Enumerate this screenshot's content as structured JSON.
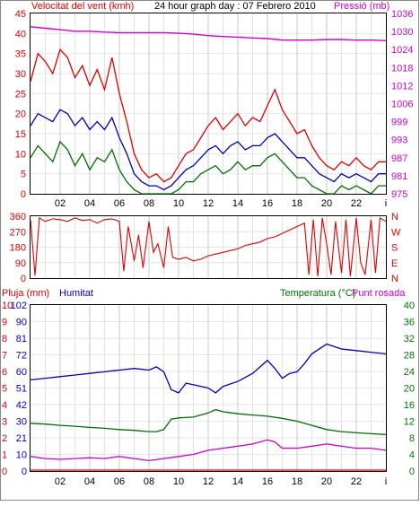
{
  "chart_data": [
    {
      "type": "line",
      "title": "24 hour graph day : 07 Febrero 2010",
      "left_axis_label": "Velocitat del vent (kmh)",
      "right_axis_label": "Pressió (mb)",
      "left_ticks": [
        "0",
        "5",
        "10",
        "15",
        "20",
        "25",
        "30",
        "35",
        "40",
        "45"
      ],
      "right_ticks": [
        "975",
        "981",
        "987",
        "993",
        "999",
        "1006",
        "1012",
        "1018",
        "1024",
        "1030",
        "1036"
      ],
      "x_ticks": [
        "02",
        "04",
        "06",
        "08",
        "10",
        "12",
        "14",
        "16",
        "18",
        "20",
        "22",
        "i"
      ],
      "x_range": [
        0,
        24
      ],
      "left_ylim": [
        0,
        45
      ],
      "right_ylim": [
        975,
        1036
      ],
      "colors": {
        "gust": "#e00000",
        "average": "#0000c0",
        "minimum": "#007000",
        "pressure": "#d000d0"
      },
      "series": [
        {
          "key": "gust",
          "x": [
            0,
            0.5,
            1,
            1.5,
            2,
            2.5,
            3,
            3.5,
            4,
            4.5,
            5,
            5.5,
            6,
            6.5,
            7,
            7.5,
            8,
            8.5,
            9,
            9.5,
            10,
            10.5,
            11,
            11.5,
            12,
            12.5,
            13,
            13.5,
            14,
            14.5,
            15,
            15.5,
            16,
            16.5,
            17,
            17.5,
            18,
            18.5,
            19,
            19.5,
            20,
            20.5,
            21,
            21.5,
            22,
            22.5,
            23,
            23.5,
            24
          ],
          "values": [
            28,
            35,
            33,
            30,
            36,
            34,
            29,
            32,
            27,
            31,
            26,
            34,
            25,
            18,
            10,
            6,
            4,
            5,
            3,
            4,
            7,
            10,
            11,
            14,
            17,
            19,
            16,
            18,
            20,
            17,
            19,
            18,
            22,
            26,
            21,
            18,
            15,
            16,
            12,
            9,
            7,
            6,
            8,
            7,
            9,
            7,
            6,
            8,
            8
          ]
        },
        {
          "key": "average",
          "x": [
            0,
            0.5,
            1,
            1.5,
            2,
            2.5,
            3,
            3.5,
            4,
            4.5,
            5,
            5.5,
            6,
            6.5,
            7,
            7.5,
            8,
            8.5,
            9,
            9.5,
            10,
            10.5,
            11,
            11.5,
            12,
            12.5,
            13,
            13.5,
            14,
            14.5,
            15,
            15.5,
            16,
            16.5,
            17,
            17.5,
            18,
            18.5,
            19,
            19.5,
            20,
            20.5,
            21,
            21.5,
            22,
            22.5,
            23,
            23.5,
            24
          ],
          "values": [
            17,
            20,
            19,
            18,
            21,
            20,
            17,
            19,
            16,
            18,
            16,
            19,
            14,
            10,
            5,
            3,
            2,
            2,
            1,
            2,
            4,
            6,
            7,
            9,
            11,
            12,
            10,
            12,
            13,
            11,
            12,
            12,
            14,
            15,
            13,
            11,
            9,
            9,
            7,
            5,
            4,
            3,
            5,
            4,
            5,
            4,
            3,
            5,
            5
          ]
        },
        {
          "key": "minimum",
          "x": [
            0,
            0.5,
            1,
            1.5,
            2,
            2.5,
            3,
            3.5,
            4,
            4.5,
            5,
            5.5,
            6,
            6.5,
            7,
            7.5,
            8,
            8.5,
            9,
            9.5,
            10,
            10.5,
            11,
            11.5,
            12,
            12.5,
            13,
            13.5,
            14,
            14.5,
            15,
            15.5,
            16,
            16.5,
            17,
            17.5,
            18,
            18.5,
            19,
            19.5,
            20,
            20.5,
            21,
            21.5,
            22,
            22.5,
            23,
            23.5,
            24
          ],
          "values": [
            9,
            12,
            10,
            8,
            13,
            11,
            7,
            10,
            6,
            9,
            8,
            11,
            6,
            3,
            1,
            0,
            0,
            0,
            0,
            0,
            1,
            3,
            3,
            5,
            6,
            7,
            5,
            6,
            8,
            6,
            7,
            7,
            9,
            10,
            8,
            6,
            4,
            4,
            2,
            1,
            0,
            0,
            2,
            1,
            2,
            1,
            0,
            2,
            2
          ]
        },
        {
          "key": "pressure",
          "x": [
            0,
            1,
            2,
            3,
            4,
            5,
            6,
            7,
            8,
            9,
            10,
            11,
            12,
            13,
            14,
            15,
            16,
            17,
            18,
            19,
            20,
            21,
            22,
            23,
            24
          ],
          "values": [
            1031.5,
            1031,
            1030.5,
            1030,
            1030,
            1029.7,
            1029.5,
            1029.5,
            1029.5,
            1029.5,
            1029.3,
            1029,
            1028.5,
            1028.2,
            1028,
            1027.7,
            1027.5,
            1027,
            1027,
            1027,
            1027.2,
            1027.2,
            1027,
            1027,
            1026.8
          ]
        }
      ]
    },
    {
      "type": "line",
      "left_axis_label": "",
      "left_ticks": [
        "0",
        "90",
        "180",
        "270",
        "360"
      ],
      "right_ticks": [
        "N",
        "W",
        "S",
        "E",
        "N"
      ],
      "x_range": [
        0,
        24
      ],
      "ylim": [
        0,
        360
      ],
      "color": "#e00000",
      "series": [
        {
          "key": "direction",
          "x": [
            0,
            0.3,
            0.6,
            1,
            1.5,
            2,
            2.5,
            3,
            3.5,
            4,
            4.5,
            5,
            5.5,
            6,
            6.3,
            6.6,
            7,
            7.3,
            7.6,
            8,
            8.3,
            8.6,
            9,
            9.3,
            9.6,
            10,
            10.5,
            11,
            11.5,
            12,
            12.5,
            13,
            13.5,
            14,
            14.5,
            15,
            15.5,
            16,
            16.5,
            17,
            17.5,
            18,
            18.5,
            18.8,
            19.1,
            19.4,
            19.7,
            20,
            20.3,
            20.6,
            21,
            21.3,
            21.6,
            22,
            22.3,
            22.6,
            23,
            23.3,
            23.6,
            24
          ],
          "values": [
            340,
            15,
            350,
            330,
            345,
            340,
            330,
            350,
            335,
            340,
            320,
            340,
            345,
            330,
            40,
            300,
            100,
            250,
            60,
            330,
            150,
            200,
            60,
            300,
            120,
            110,
            120,
            100,
            110,
            130,
            140,
            150,
            160,
            170,
            190,
            200,
            210,
            230,
            240,
            260,
            280,
            300,
            320,
            20,
            340,
            10,
            350,
            200,
            20,
            330,
            30,
            340,
            10,
            350,
            90,
            20,
            340,
            30,
            350,
            330
          ]
        }
      ]
    },
    {
      "type": "line",
      "left_axis_label": "Pluja (mm)",
      "left_series_label": "Humitat",
      "right_axis_label": "Temperatura (°C)",
      "right_series_label": "Punt rosada",
      "rain_ticks": [
        "0",
        "1",
        "2",
        "3",
        "4",
        "5",
        "6",
        "7",
        "8",
        "9",
        "10"
      ],
      "humidity_ticks": [
        "0",
        "10",
        "21",
        "30",
        "42",
        "51",
        "60",
        "72",
        "81",
        "90",
        "102"
      ],
      "temp_ticks": [
        "0",
        "4",
        "8",
        "12",
        "16",
        "20",
        "24",
        "28",
        "32",
        "36",
        "40"
      ],
      "x_ticks": [
        "02",
        "04",
        "06",
        "08",
        "10",
        "12",
        "14",
        "16",
        "18",
        "20",
        "22",
        "i"
      ],
      "x_range": [
        0,
        24
      ],
      "humidity_ylim": [
        0,
        102
      ],
      "temp_ylim": [
        0,
        40
      ],
      "colors": {
        "rain": "#e00000",
        "humidity": "#0000c0",
        "temperature": "#007000",
        "dewpoint": "#d000d0"
      },
      "series": [
        {
          "key": "humidity",
          "x": [
            0,
            1,
            2,
            3,
            4,
            5,
            6,
            7,
            8,
            8.5,
            9,
            9.5,
            10,
            10.5,
            11,
            12,
            12.5,
            13,
            14,
            15,
            15.5,
            16,
            16.5,
            17,
            17.5,
            18,
            18.5,
            19,
            20,
            21,
            22,
            23,
            24
          ],
          "values": [
            56,
            57,
            58,
            59,
            60,
            61,
            62,
            63,
            62,
            64,
            61,
            50,
            48,
            54,
            53,
            51,
            48,
            52,
            55,
            60,
            64,
            68,
            63,
            57,
            60,
            61,
            66,
            72,
            78,
            75,
            74,
            73,
            72
          ]
        },
        {
          "key": "temperature",
          "x": [
            0,
            1,
            2,
            3,
            4,
            5,
            6,
            7,
            8,
            8.5,
            9,
            9.5,
            10,
            11,
            12,
            12.5,
            13,
            14,
            15,
            16,
            17,
            18,
            19,
            20,
            21,
            22,
            23,
            24
          ],
          "values": [
            11.5,
            11.3,
            11,
            10.8,
            10.5,
            10.3,
            10,
            9.8,
            9.5,
            9.5,
            10,
            12.5,
            12.8,
            13,
            14,
            14.8,
            14.3,
            13.8,
            13.5,
            13.2,
            12.7,
            12,
            11,
            10,
            9.5,
            9.2,
            9,
            8.8
          ]
        },
        {
          "key": "dewpoint",
          "x": [
            0,
            1,
            2,
            3,
            4,
            5,
            6,
            7,
            8,
            9,
            10,
            11,
            12,
            13,
            14,
            15,
            16,
            16.5,
            17,
            18,
            19,
            20,
            21,
            22,
            23,
            24
          ],
          "values": [
            3.5,
            3,
            2.8,
            3,
            3.2,
            3,
            3.5,
            3,
            2.5,
            3,
            3.5,
            4,
            5,
            5.5,
            6,
            6.5,
            7.5,
            7,
            5.5,
            5.5,
            6,
            6.5,
            6,
            5.5,
            5.5,
            5
          ]
        },
        {
          "key": "rain",
          "x": [
            0,
            24
          ],
          "values": [
            0,
            0
          ]
        }
      ]
    }
  ]
}
